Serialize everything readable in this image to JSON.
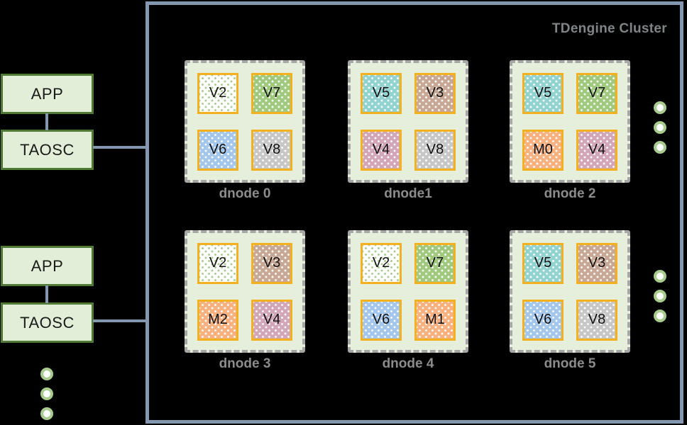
{
  "cluster": {
    "title": "TDengine Cluster",
    "dnodes": [
      {
        "label": "dnode 0",
        "vnodes": [
          "V2",
          "V7",
          "V6",
          "V8"
        ]
      },
      {
        "label": "dnode1",
        "vnodes": [
          "V5",
          "V3",
          "V4",
          "V8"
        ]
      },
      {
        "label": "dnode 2",
        "vnodes": [
          "V5",
          "V7",
          "M0",
          "V4"
        ]
      },
      {
        "label": "dnode 3",
        "vnodes": [
          "V2",
          "V3",
          "M2",
          "V4"
        ]
      },
      {
        "label": "dnode 4",
        "vnodes": [
          "V2",
          "V7",
          "V6",
          "M1"
        ]
      },
      {
        "label": "dnode 5",
        "vnodes": [
          "V5",
          "V3",
          "V6",
          "V8"
        ]
      }
    ]
  },
  "clients": [
    {
      "app_label": "APP",
      "taosc_label": "TAOSC"
    },
    {
      "app_label": "APP",
      "taosc_label": "TAOSC"
    }
  ],
  "vnode_styles": {
    "V2": {
      "bg": "#ffffff",
      "dot": "#a6cd8c"
    },
    "V3": {
      "bg": "#c8a795",
      "dot": "#ffffff"
    },
    "V4": {
      "bg": "#d2a5b7",
      "dot": "#ffffff"
    },
    "V5": {
      "bg": "#90d3d1",
      "dot": "#ffffff"
    },
    "V6": {
      "bg": "#a3c6ed",
      "dot": "#ffffff"
    },
    "V7": {
      "bg": "#9fc97d",
      "dot": "#ffffff"
    },
    "V8": {
      "bg": "#c7c7c7",
      "dot": "#ffffff"
    },
    "M0": {
      "bg": "#f9b07f",
      "dot": "#ffffff"
    },
    "M1": {
      "bg": "#f9b07f",
      "dot": "#ffffff"
    },
    "M2": {
      "bg": "#f9b07f",
      "dot": "#ffffff"
    }
  },
  "colors": {
    "connector_line": "#8397ae",
    "client_box_fill": "#e3eed8",
    "client_box_border": "#4e7a33",
    "dnode_fill": "#e6efdb",
    "dnode_border": "#a6a6a6",
    "vnode_border": "#f3b11f",
    "ellipsis_green": "#a8cc8d",
    "label_gray": "#8c8c8c"
  }
}
